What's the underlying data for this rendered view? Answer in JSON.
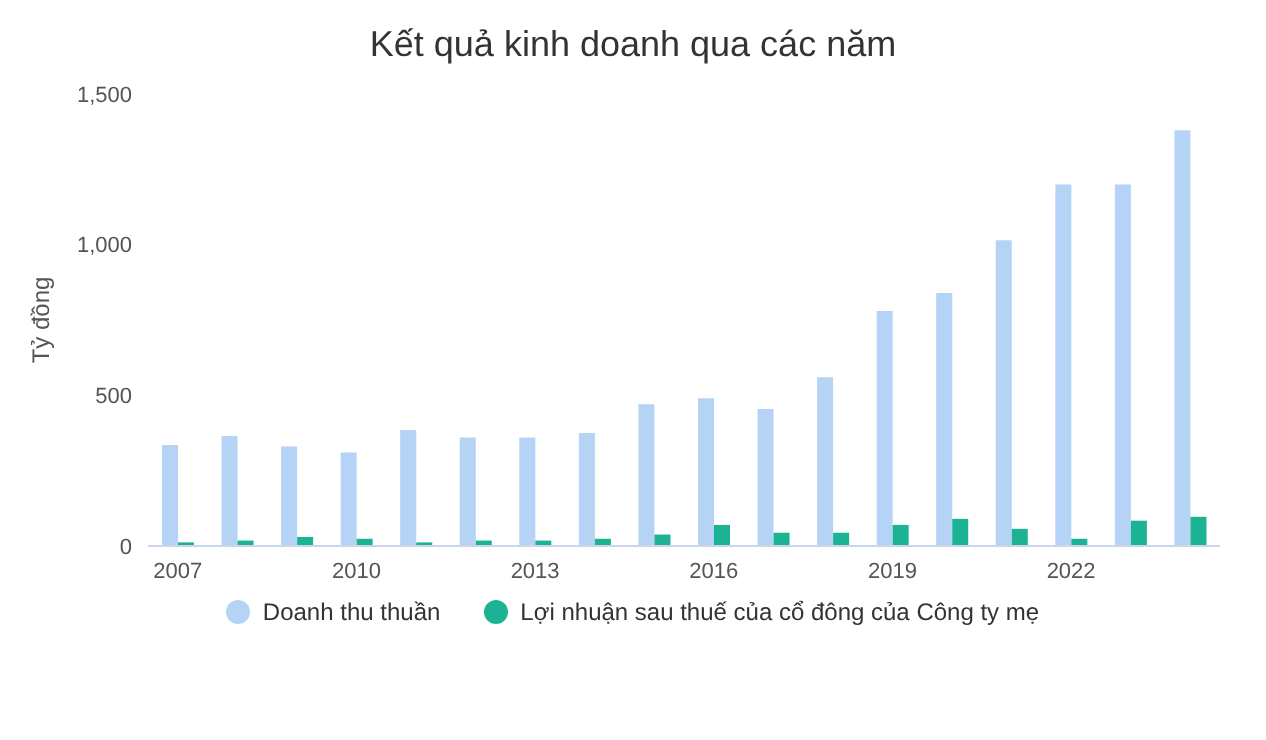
{
  "chart_data": {
    "type": "bar",
    "title": "Kết quả kinh doanh qua các năm",
    "ylabel": "Tỷ đồng",
    "categories": [
      "2007",
      null,
      null,
      "2010",
      null,
      null,
      "2013",
      null,
      null,
      "2016",
      null,
      null,
      "2019",
      null,
      null,
      "2022",
      null,
      null
    ],
    "series": [
      {
        "name": "Doanh thu thuần",
        "color": "#b5d3f5",
        "values": [
          335,
          365,
          330,
          310,
          385,
          360,
          360,
          375,
          470,
          490,
          455,
          560,
          780,
          840,
          1015,
          1200,
          1200,
          1380
        ]
      },
      {
        "name": "Lợi nhuận sau thuế của cổ đông của Công ty mẹ",
        "color": "#1cb394",
        "values": [
          12,
          18,
          30,
          24,
          12,
          18,
          18,
          24,
          38,
          70,
          44,
          44,
          70,
          90,
          57,
          24,
          84,
          97
        ]
      }
    ],
    "ylim": [
      0,
      1500
    ],
    "yticks": [
      0,
      {
        "value": 500,
        "label": "500"
      },
      {
        "value": 1000,
        "label": "1,000"
      },
      {
        "value": 1500,
        "label": "1,500"
      }
    ],
    "grid": false,
    "legend": "bottom"
  }
}
